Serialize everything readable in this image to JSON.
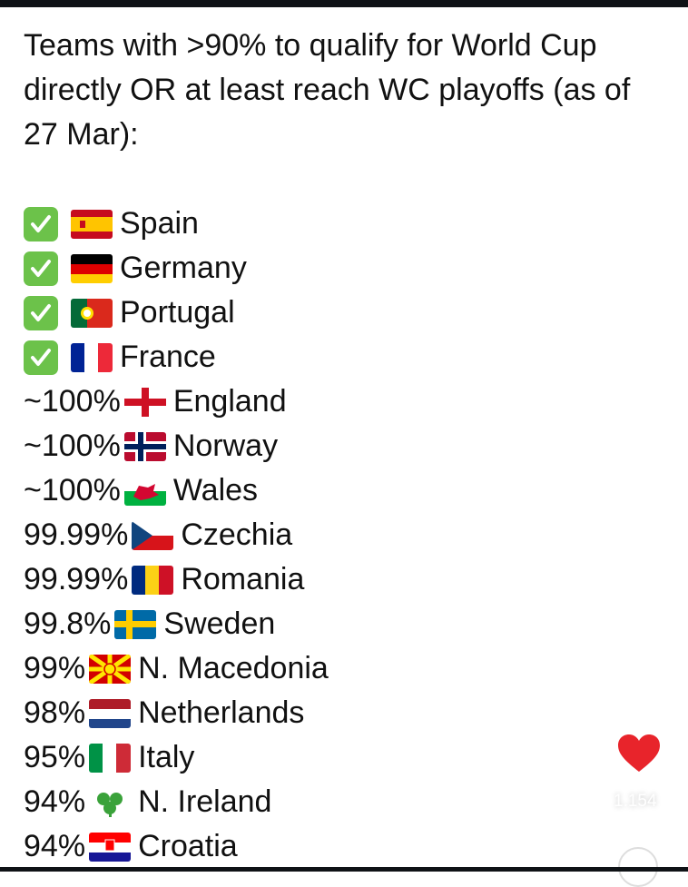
{
  "post": {
    "title": "Teams with >90% to qualify for World Cup directly OR at least reach WC playoffs (as of 27 Mar):",
    "rows": [
      {
        "status": "check-icon",
        "pct": "",
        "team": "Spain",
        "flag": "spain-flag-icon",
        "colors": [
          "#c60b1e",
          "#ffc400",
          "#c60b1e"
        ],
        "layout": "h3s"
      },
      {
        "status": "check-icon",
        "pct": "",
        "team": "Germany",
        "flag": "germany-flag-icon",
        "colors": [
          "#000000",
          "#dd0000",
          "#ffce00"
        ],
        "layout": "h3"
      },
      {
        "status": "check-icon",
        "pct": "",
        "team": "Portugal",
        "flag": "portugal-flag-icon",
        "colors": [
          "#046a38",
          "#da291c"
        ],
        "layout": "pt"
      },
      {
        "status": "check-icon",
        "pct": "",
        "team": "France",
        "flag": "france-flag-icon",
        "colors": [
          "#002395",
          "#ffffff",
          "#ed2939"
        ],
        "layout": "v3"
      },
      {
        "status": "",
        "pct": "~100%",
        "team": "England",
        "flag": "england-flag-icon",
        "colors": [
          "#ffffff",
          "#ce1124"
        ],
        "layout": "cross"
      },
      {
        "status": "",
        "pct": "~100%",
        "team": "Norway",
        "flag": "norway-flag-icon",
        "colors": [
          "#ba0c2f",
          "#ffffff",
          "#00205b"
        ],
        "layout": "nordic2"
      },
      {
        "status": "",
        "pct": "~100%",
        "team": "Wales",
        "flag": "wales-flag-icon",
        "colors": [
          "#ffffff",
          "#00b140",
          "#d30731"
        ],
        "layout": "wales"
      },
      {
        "status": "",
        "pct": "99.99%",
        "team": "Czechia",
        "flag": "czechia-flag-icon",
        "colors": [
          "#ffffff",
          "#d7141a",
          "#11457e"
        ],
        "layout": "cz"
      },
      {
        "status": "",
        "pct": "99.99%",
        "team": "Romania",
        "flag": "romania-flag-icon",
        "colors": [
          "#002b7f",
          "#fcd116",
          "#ce1126"
        ],
        "layout": "v3"
      },
      {
        "status": "",
        "pct": "99.8%",
        "team": "Sweden",
        "flag": "sweden-flag-icon",
        "colors": [
          "#006aa7",
          "#fecc00"
        ],
        "layout": "nordic"
      },
      {
        "status": "",
        "pct": "99%",
        "team": "N. Macedonia",
        "flag": "north-macedonia-flag-icon",
        "colors": [
          "#d20000",
          "#ffe600"
        ],
        "layout": "mk"
      },
      {
        "status": "",
        "pct": "98%",
        "team": "Netherlands",
        "flag": "netherlands-flag-icon",
        "colors": [
          "#ae1c28",
          "#ffffff",
          "#21468b"
        ],
        "layout": "h3"
      },
      {
        "status": "",
        "pct": "95%",
        "team": "Italy",
        "flag": "italy-flag-icon",
        "colors": [
          "#009246",
          "#ffffff",
          "#ce2b37"
        ],
        "layout": "v3"
      },
      {
        "status": "",
        "pct": "94%",
        "team": "N. Ireland",
        "flag": "shamrock-icon",
        "colors": [
          "#3aa23a"
        ],
        "layout": "shamrock"
      },
      {
        "status": "",
        "pct": "94%",
        "team": "Croatia",
        "flag": "croatia-flag-icon",
        "colors": [
          "#ff0000",
          "#ffffff",
          "#171796"
        ],
        "layout": "h3c"
      }
    ]
  },
  "reactions": {
    "like_count": "1.154",
    "heart_color": "#e8242b"
  }
}
